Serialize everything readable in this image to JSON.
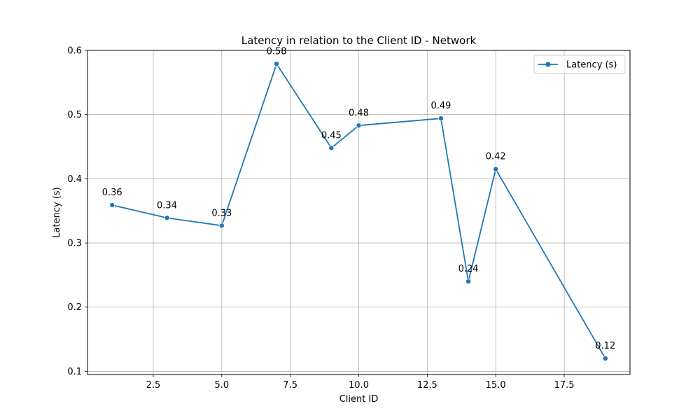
{
  "chart_data": {
    "type": "line",
    "title": "Latency in relation to the Client ID - Network",
    "xlabel": "Client ID",
    "ylabel": "Latency (s)",
    "xlim": [
      0.1,
      19.9
    ],
    "ylim": [
      0.095,
      0.6
    ],
    "xticks": [
      2.5,
      5.0,
      7.5,
      10.0,
      12.5,
      15.0,
      17.5
    ],
    "xtick_labels": [
      "2.5",
      "5.0",
      "7.5",
      "10.0",
      "12.5",
      "15.0",
      "17.5"
    ],
    "yticks": [
      0.1,
      0.2,
      0.3,
      0.4,
      0.5,
      0.6
    ],
    "ytick_labels": [
      "0.1",
      "0.2",
      "0.3",
      "0.4",
      "0.5",
      "0.6"
    ],
    "grid": true,
    "legend_position": "top-right",
    "series": [
      {
        "name": "Latency (s)",
        "color": "#1f77b4",
        "marker": "circle",
        "x": [
          1,
          3,
          5,
          7,
          9,
          10,
          13,
          14,
          15,
          19
        ],
        "y": [
          0.359,
          0.339,
          0.327,
          0.579,
          0.448,
          0.483,
          0.494,
          0.24,
          0.415,
          0.12
        ],
        "labels": [
          "0.36",
          "0.34",
          "0.33",
          "0.58",
          "0.45",
          "0.48",
          "0.49",
          "0.24",
          "0.42",
          "0.12"
        ]
      }
    ]
  }
}
